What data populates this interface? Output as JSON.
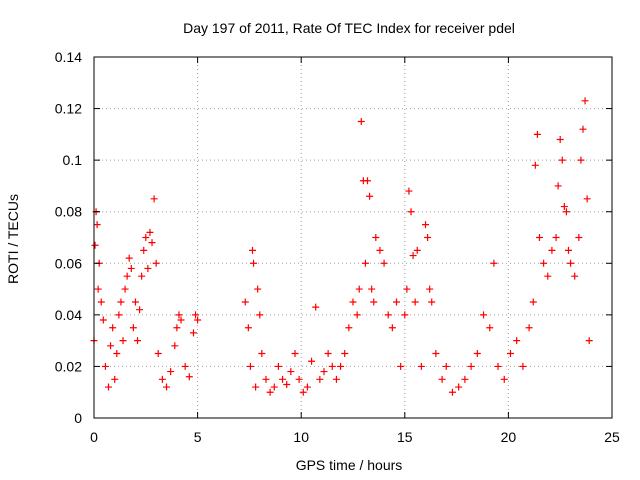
{
  "chart_data": {
    "type": "scatter",
    "title": "Day 197 of 2011, Rate Of TEC Index for receiver pdel",
    "xlabel": "GPS time / hours",
    "ylabel": "ROTI / TECUs",
    "xlim": [
      0,
      25
    ],
    "ylim": [
      0,
      0.14
    ],
    "x_ticks": [
      0,
      5,
      10,
      15,
      20,
      25
    ],
    "x_tick_labels": [
      "0",
      "5",
      "10",
      "15",
      "20",
      "25"
    ],
    "y_ticks": [
      0,
      0.02,
      0.04,
      0.06,
      0.08,
      0.1,
      0.12,
      0.14
    ],
    "y_tick_labels": [
      "0",
      "0.02",
      "0.04",
      "0.06",
      "0.08",
      "0.1",
      "0.12",
      "0.14"
    ],
    "grid": true,
    "marker": "+",
    "color": "#ff0000",
    "series": [
      {
        "points": [
          [
            0.0,
            0.03
          ],
          [
            0.05,
            0.067
          ],
          [
            0.1,
            0.08
          ],
          [
            0.15,
            0.075
          ],
          [
            0.2,
            0.05
          ],
          [
            0.25,
            0.06
          ],
          [
            0.35,
            0.045
          ],
          [
            0.45,
            0.038
          ],
          [
            0.55,
            0.02
          ],
          [
            0.7,
            0.012
          ],
          [
            0.8,
            0.028
          ],
          [
            0.9,
            0.035
          ],
          [
            1.0,
            0.015
          ],
          [
            1.1,
            0.025
          ],
          [
            1.2,
            0.04
          ],
          [
            1.3,
            0.045
          ],
          [
            1.4,
            0.03
          ],
          [
            1.5,
            0.05
          ],
          [
            1.6,
            0.055
          ],
          [
            1.7,
            0.062
          ],
          [
            1.8,
            0.058
          ],
          [
            1.9,
            0.035
          ],
          [
            2.0,
            0.045
          ],
          [
            2.1,
            0.03
          ],
          [
            2.2,
            0.042
          ],
          [
            2.3,
            0.055
          ],
          [
            2.4,
            0.065
          ],
          [
            2.5,
            0.07
          ],
          [
            2.6,
            0.058
          ],
          [
            2.7,
            0.072
          ],
          [
            2.8,
            0.068
          ],
          [
            2.9,
            0.085
          ],
          [
            3.0,
            0.06
          ],
          [
            3.1,
            0.025
          ],
          [
            3.3,
            0.015
          ],
          [
            3.5,
            0.012
          ],
          [
            3.7,
            0.018
          ],
          [
            3.9,
            0.028
          ],
          [
            4.0,
            0.035
          ],
          [
            4.1,
            0.04
          ],
          [
            4.2,
            0.038
          ],
          [
            4.4,
            0.02
          ],
          [
            4.6,
            0.016
          ],
          [
            4.8,
            0.033
          ],
          [
            4.9,
            0.04
          ],
          [
            5.0,
            0.038
          ],
          [
            7.3,
            0.045
          ],
          [
            7.45,
            0.035
          ],
          [
            7.55,
            0.02
          ],
          [
            7.65,
            0.065
          ],
          [
            7.7,
            0.06
          ],
          [
            7.8,
            0.012
          ],
          [
            7.9,
            0.05
          ],
          [
            8.0,
            0.04
          ],
          [
            8.1,
            0.025
          ],
          [
            8.3,
            0.015
          ],
          [
            8.5,
            0.01
          ],
          [
            8.7,
            0.012
          ],
          [
            8.9,
            0.02
          ],
          [
            9.1,
            0.015
          ],
          [
            9.3,
            0.013
          ],
          [
            9.5,
            0.018
          ],
          [
            9.7,
            0.025
          ],
          [
            9.9,
            0.015
          ],
          [
            10.1,
            0.01
          ],
          [
            10.3,
            0.012
          ],
          [
            10.5,
            0.022
          ],
          [
            10.7,
            0.043
          ],
          [
            10.9,
            0.015
          ],
          [
            11.1,
            0.018
          ],
          [
            11.3,
            0.025
          ],
          [
            11.5,
            0.02
          ],
          [
            11.7,
            0.015
          ],
          [
            11.9,
            0.02
          ],
          [
            12.1,
            0.025
          ],
          [
            12.3,
            0.035
          ],
          [
            12.5,
            0.045
          ],
          [
            12.7,
            0.04
          ],
          [
            12.8,
            0.05
          ],
          [
            12.9,
            0.115
          ],
          [
            13.0,
            0.092
          ],
          [
            13.1,
            0.06
          ],
          [
            13.2,
            0.092
          ],
          [
            13.3,
            0.086
          ],
          [
            13.4,
            0.05
          ],
          [
            13.5,
            0.045
          ],
          [
            13.6,
            0.07
          ],
          [
            13.8,
            0.065
          ],
          [
            14.0,
            0.06
          ],
          [
            14.2,
            0.04
          ],
          [
            14.4,
            0.035
          ],
          [
            14.6,
            0.045
          ],
          [
            14.8,
            0.02
          ],
          [
            15.0,
            0.04
          ],
          [
            15.1,
            0.05
          ],
          [
            15.2,
            0.088
          ],
          [
            15.3,
            0.08
          ],
          [
            15.4,
            0.063
          ],
          [
            15.5,
            0.045
          ],
          [
            15.6,
            0.065
          ],
          [
            15.8,
            0.02
          ],
          [
            16.0,
            0.075
          ],
          [
            16.1,
            0.07
          ],
          [
            16.2,
            0.05
          ],
          [
            16.3,
            0.045
          ],
          [
            16.5,
            0.025
          ],
          [
            16.8,
            0.015
          ],
          [
            17.0,
            0.02
          ],
          [
            17.3,
            0.01
          ],
          [
            17.6,
            0.012
          ],
          [
            17.9,
            0.015
          ],
          [
            18.2,
            0.02
          ],
          [
            18.5,
            0.025
          ],
          [
            18.8,
            0.04
          ],
          [
            19.1,
            0.035
          ],
          [
            19.3,
            0.06
          ],
          [
            19.5,
            0.02
          ],
          [
            19.8,
            0.015
          ],
          [
            20.1,
            0.025
          ],
          [
            20.4,
            0.03
          ],
          [
            20.7,
            0.02
          ],
          [
            21.0,
            0.035
          ],
          [
            21.2,
            0.045
          ],
          [
            21.3,
            0.098
          ],
          [
            21.4,
            0.11
          ],
          [
            21.5,
            0.07
          ],
          [
            21.7,
            0.06
          ],
          [
            21.9,
            0.055
          ],
          [
            22.1,
            0.065
          ],
          [
            22.3,
            0.07
          ],
          [
            22.4,
            0.09
          ],
          [
            22.5,
            0.108
          ],
          [
            22.6,
            0.1
          ],
          [
            22.7,
            0.082
          ],
          [
            22.8,
            0.08
          ],
          [
            22.9,
            0.065
          ],
          [
            23.0,
            0.06
          ],
          [
            23.2,
            0.055
          ],
          [
            23.4,
            0.07
          ],
          [
            23.5,
            0.1
          ],
          [
            23.6,
            0.112
          ],
          [
            23.7,
            0.123
          ],
          [
            23.8,
            0.085
          ],
          [
            23.9,
            0.03
          ]
        ]
      }
    ]
  }
}
